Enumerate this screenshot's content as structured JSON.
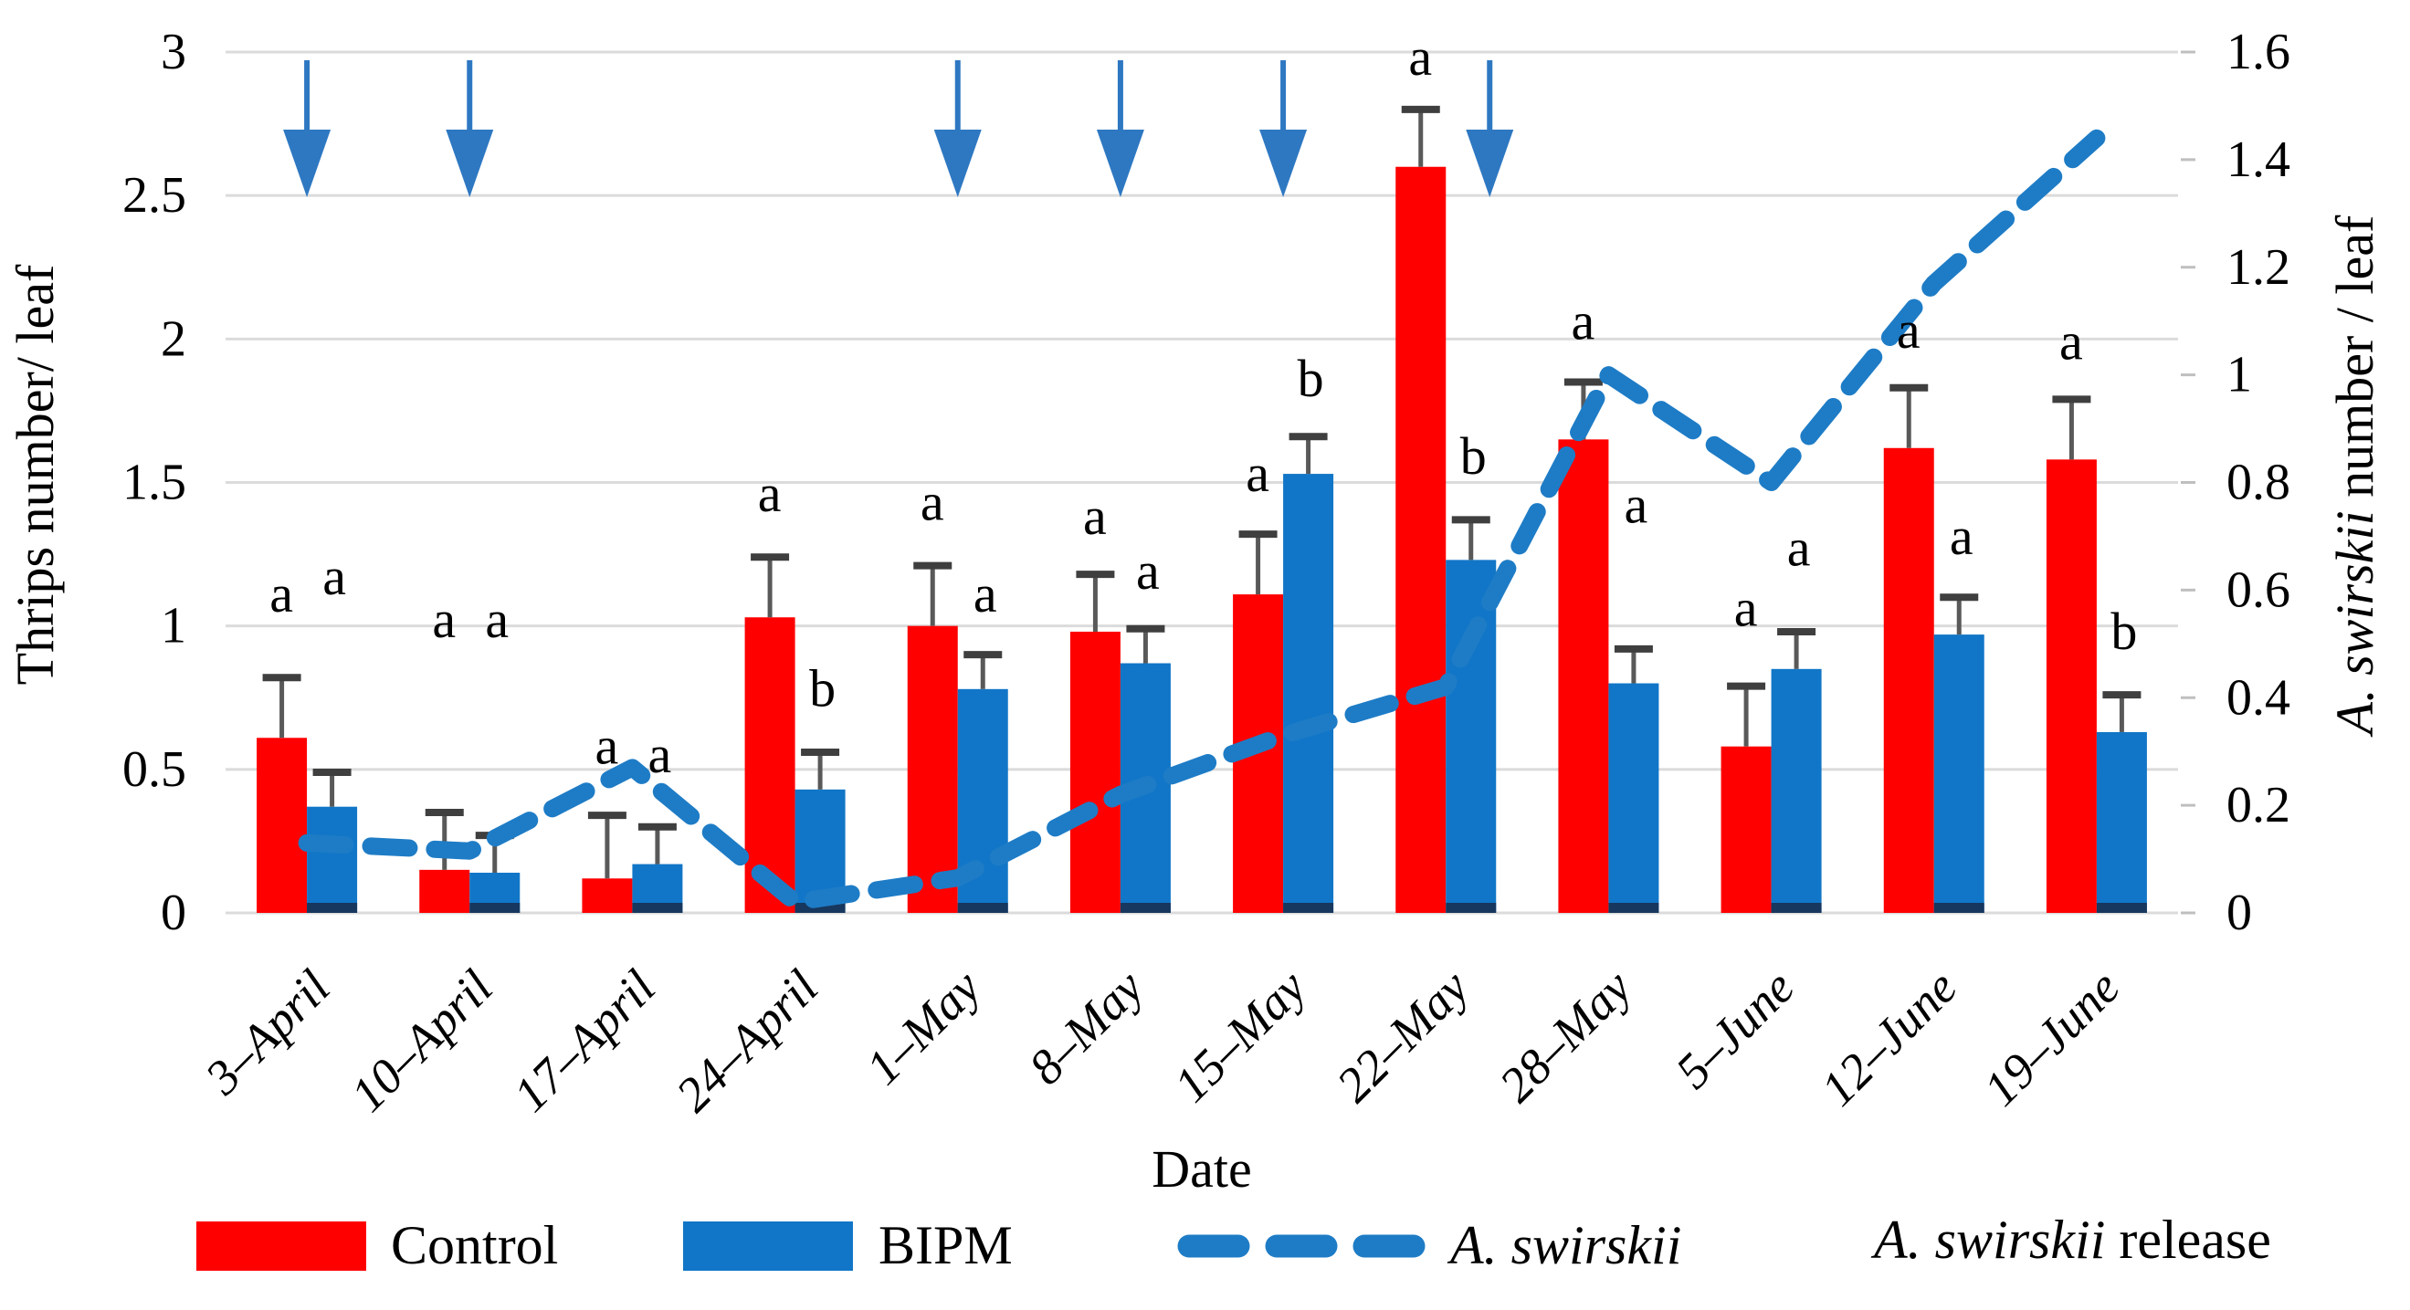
{
  "chart_data": {
    "type": "bar",
    "title": "",
    "categories": [
      "3–April",
      "10–April",
      "17–April",
      "24–April",
      "1–May",
      "8–May",
      "15–May",
      "22–May",
      "28–May",
      "5–June",
      "12–June",
      "19–June"
    ],
    "xlabel": "Date",
    "left_axis": {
      "label": "Thrips number/ leaf",
      "min": 0,
      "max": 3,
      "tick_values": [
        0,
        0.5,
        1,
        1.5,
        2,
        2.5,
        3
      ],
      "tick_labels": [
        "0",
        "0.5",
        "1",
        "1.5",
        "2",
        "2.5",
        "3"
      ]
    },
    "right_axis": {
      "label_italic": "A. swirskii",
      "label_rest": " number / leaf",
      "min": 0,
      "max": 1.6,
      "tick_values": [
        0,
        0.2,
        0.4,
        0.6,
        0.8,
        1,
        1.2,
        1.4,
        1.6
      ],
      "tick_labels": [
        "0",
        "0.2",
        "0.4",
        "0.6",
        "0.8",
        "1",
        "1.2",
        "1.4",
        "1.6"
      ]
    },
    "grid": "on",
    "series": [
      {
        "name": "Control",
        "type": "bar",
        "axis": "left",
        "color": "#FE0000",
        "values": [
          0.61,
          0.15,
          0.12,
          1.03,
          1.0,
          0.98,
          1.11,
          2.6,
          1.65,
          0.58,
          1.62,
          1.58
        ],
        "errors": [
          0.21,
          0.2,
          0.22,
          0.21,
          0.21,
          0.2,
          0.21,
          0.2,
          0.2,
          0.21,
          0.21,
          0.21
        ],
        "letters": [
          "a",
          "a",
          "a",
          "a",
          "a",
          "a",
          "a",
          "a",
          "a",
          "a",
          "a",
          "a"
        ],
        "letter_y": [
          1.05,
          0.96,
          0.52,
          1.4,
          1.37,
          1.32,
          1.47,
          2.92,
          2.0,
          1.0,
          1.97,
          1.93
        ]
      },
      {
        "name": "BIPM",
        "type": "bar",
        "axis": "left",
        "color": "#1176C7",
        "values": [
          0.37,
          0.14,
          0.17,
          0.43,
          0.78,
          0.87,
          1.53,
          1.23,
          0.8,
          0.85,
          0.97,
          0.63
        ],
        "errors": [
          0.12,
          0.13,
          0.13,
          0.13,
          0.12,
          0.12,
          0.13,
          0.14,
          0.12,
          0.13,
          0.13,
          0.13
        ],
        "letters": [
          "a",
          "a",
          "a",
          "b",
          "a",
          "a",
          "b",
          "b",
          "a",
          "a",
          "a",
          "b"
        ],
        "letter_y": [
          1.11,
          0.96,
          0.49,
          0.72,
          1.05,
          1.13,
          1.8,
          1.53,
          1.36,
          1.21,
          1.25,
          0.92
        ]
      },
      {
        "name": "A. swirskii",
        "type": "line",
        "axis": "right",
        "color": "#1E7CC6",
        "values": [
          0.13,
          0.115,
          0.27,
          0.02,
          0.065,
          0.22,
          0.33,
          0.42,
          1.0,
          0.8,
          1.17,
          1.44
        ]
      }
    ],
    "release_arrows": {
      "categories": [
        0,
        1,
        4,
        5,
        6,
        7
      ],
      "color": "#2E78C2",
      "label_italic": "A. swirskii",
      "label_rest": " release"
    },
    "colors": {
      "control_bar": "#FE0000",
      "bipm_bar": "#1176C7",
      "bipm_bar_base": "#17375E",
      "line": "#1E7CC6",
      "arrow": "#2E78C2",
      "gridline": "#DBDBDB",
      "error_stem": "#595959",
      "error_cap": "#3F3F3F",
      "right_tick_mark": "#BFBFBF"
    }
  },
  "legend": {
    "control": "Control",
    "bipm": "BIPM",
    "line_italic": "A. swirskii"
  }
}
